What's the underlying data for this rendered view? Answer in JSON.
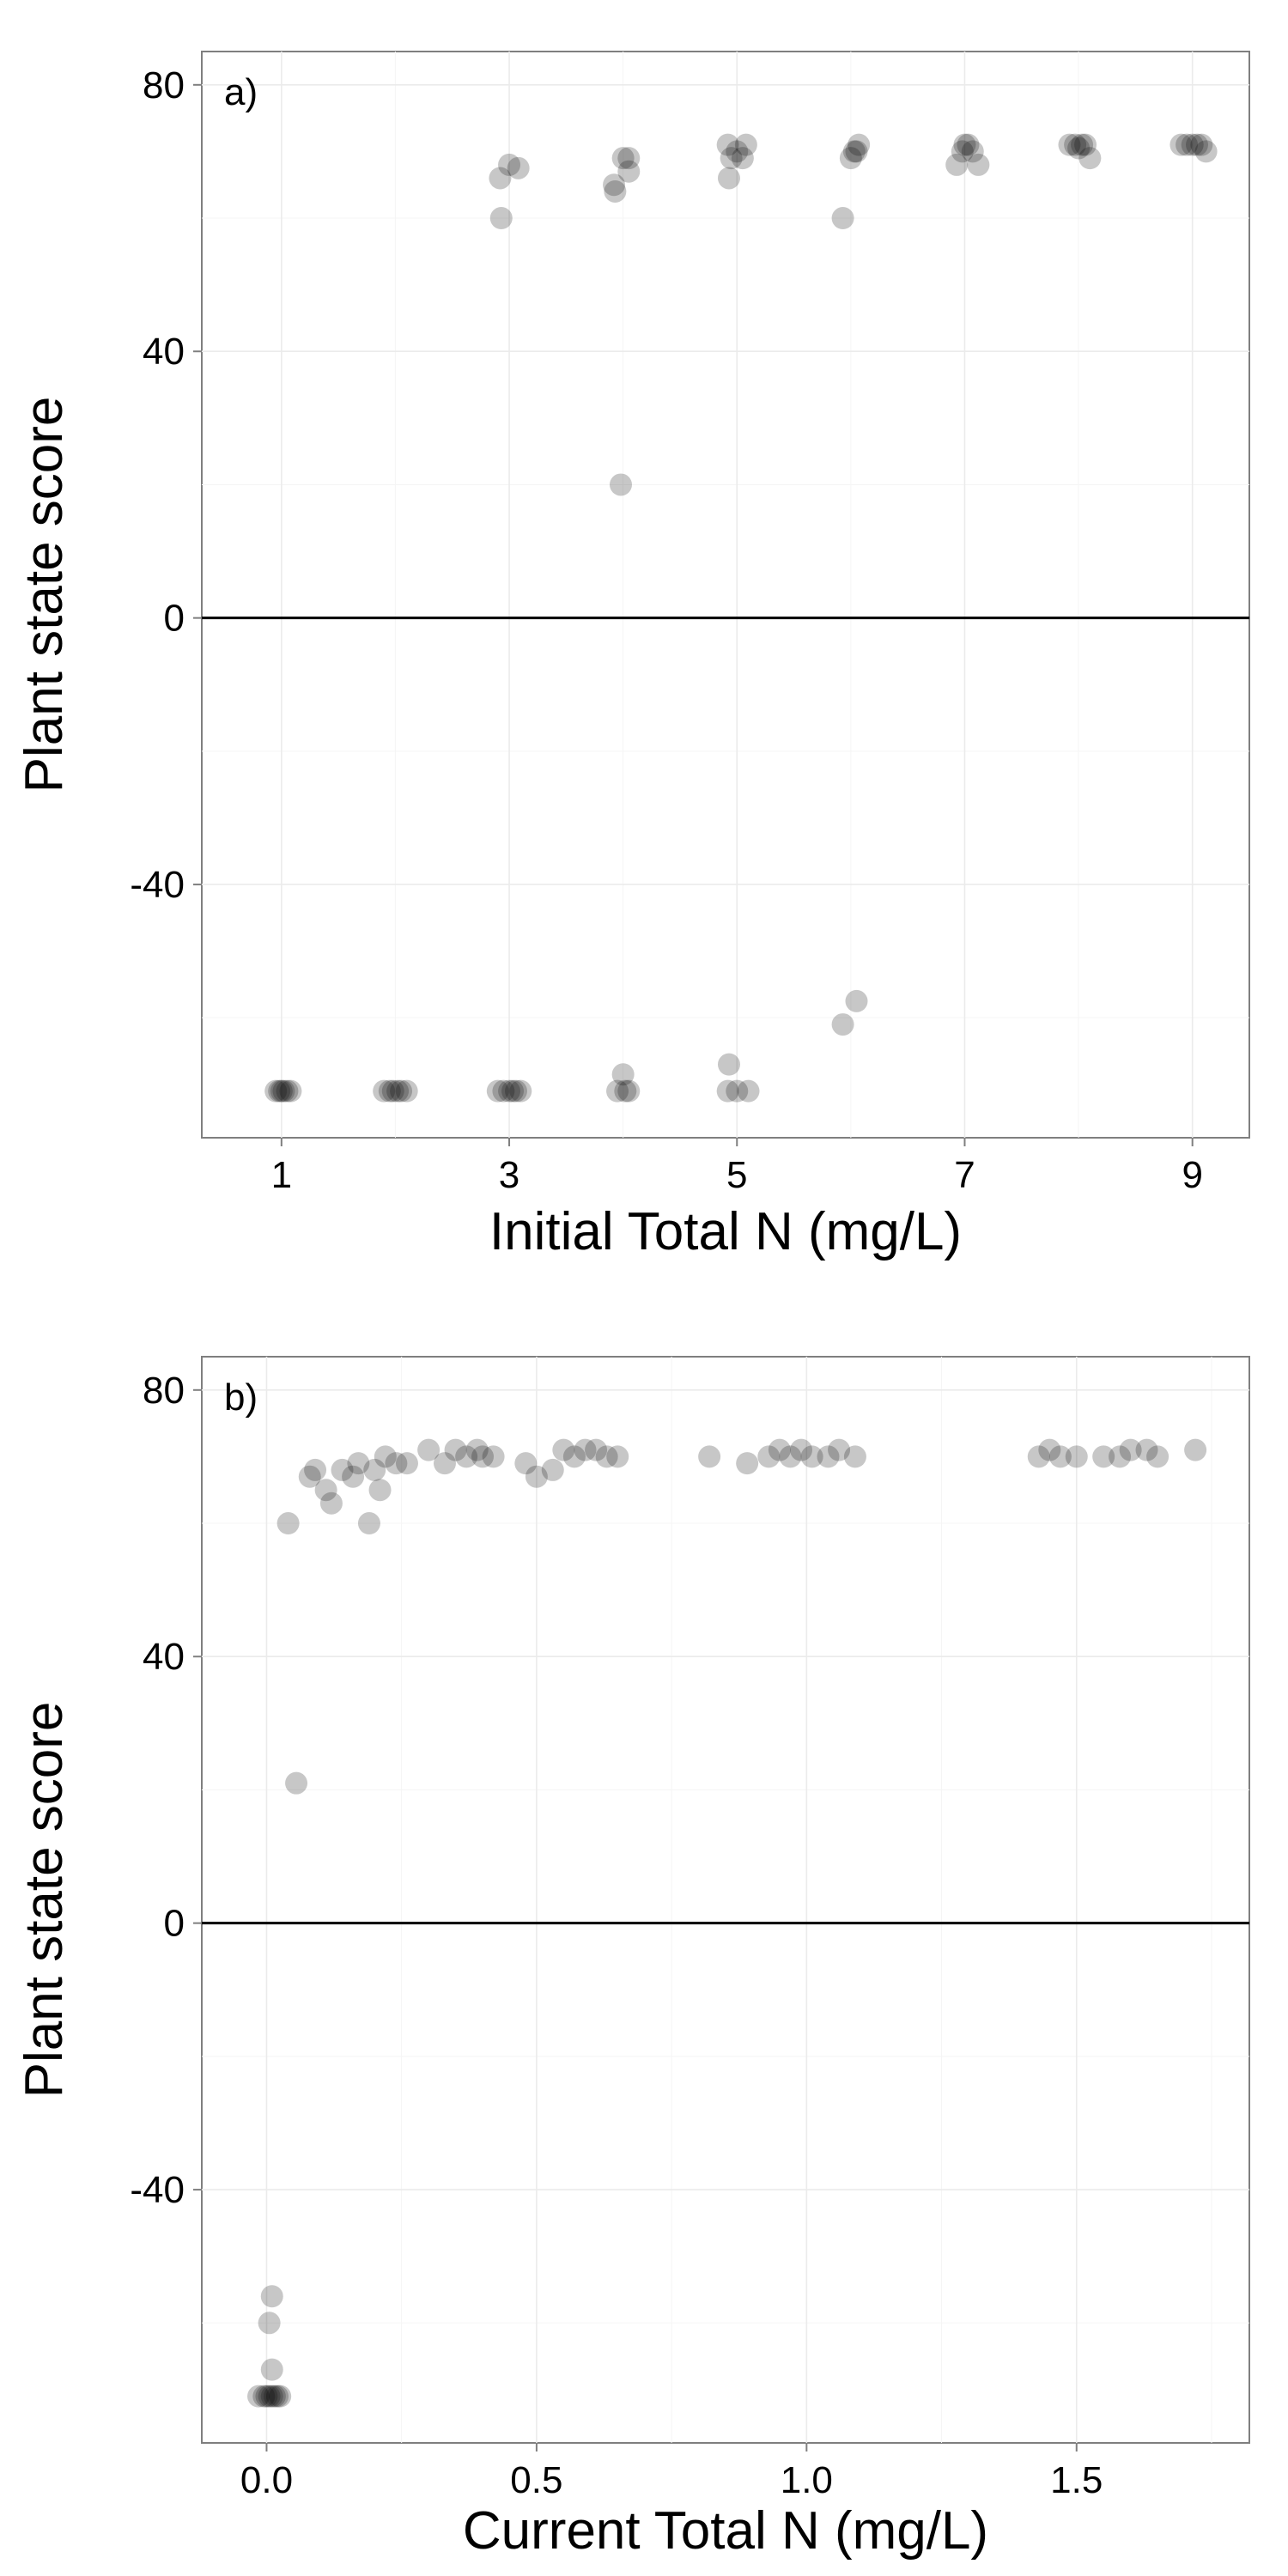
{
  "chart_data": [
    {
      "type": "scatter",
      "panel_label": "a)",
      "xlabel": "Initial Total N (mg/L)",
      "ylabel": "Plant state score",
      "xlim": [
        0.3,
        9.5
      ],
      "ylim": [
        -78,
        85
      ],
      "x_ticks": [
        1,
        3,
        5,
        7,
        9
      ],
      "x_tick_labels": [
        "1",
        "3",
        "5",
        "7",
        "9"
      ],
      "y_ticks": [
        -40,
        0,
        40,
        80
      ],
      "y_tick_labels": [
        "-40",
        "0",
        "40",
        "80"
      ],
      "reference_line_y": 0,
      "grid": true,
      "points": [
        {
          "x": 0.95,
          "y": -71
        },
        {
          "x": 0.98,
          "y": -71
        },
        {
          "x": 1.0,
          "y": -71
        },
        {
          "x": 1.02,
          "y": -71
        },
        {
          "x": 1.05,
          "y": -71
        },
        {
          "x": 1.08,
          "y": -71
        },
        {
          "x": 1.9,
          "y": -71
        },
        {
          "x": 1.95,
          "y": -71
        },
        {
          "x": 1.98,
          "y": -71
        },
        {
          "x": 2.02,
          "y": -71
        },
        {
          "x": 2.05,
          "y": -71
        },
        {
          "x": 2.1,
          "y": -71
        },
        {
          "x": 2.9,
          "y": -71
        },
        {
          "x": 2.95,
          "y": -71
        },
        {
          "x": 3.0,
          "y": -71
        },
        {
          "x": 3.03,
          "y": -71
        },
        {
          "x": 3.06,
          "y": -71
        },
        {
          "x": 3.1,
          "y": -71
        },
        {
          "x": 3.95,
          "y": -71
        },
        {
          "x": 4.05,
          "y": -71
        },
        {
          "x": 4.02,
          "y": -71
        },
        {
          "x": 4.0,
          "y": -68.5
        },
        {
          "x": 4.92,
          "y": -71
        },
        {
          "x": 5.0,
          "y": -71
        },
        {
          "x": 5.1,
          "y": -71
        },
        {
          "x": 4.93,
          "y": -67
        },
        {
          "x": 5.93,
          "y": -61
        },
        {
          "x": 6.05,
          "y": -57.5
        },
        {
          "x": 3.98,
          "y": 20
        },
        {
          "x": 2.93,
          "y": 60
        },
        {
          "x": 2.92,
          "y": 66
        },
        {
          "x": 3.0,
          "y": 68
        },
        {
          "x": 3.08,
          "y": 67.5
        },
        {
          "x": 3.93,
          "y": 64
        },
        {
          "x": 3.92,
          "y": 65
        },
        {
          "x": 4.05,
          "y": 67
        },
        {
          "x": 4.0,
          "y": 69
        },
        {
          "x": 4.05,
          "y": 69
        },
        {
          "x": 4.93,
          "y": 66
        },
        {
          "x": 4.95,
          "y": 69
        },
        {
          "x": 4.92,
          "y": 71
        },
        {
          "x": 5.0,
          "y": 70
        },
        {
          "x": 5.05,
          "y": 69
        },
        {
          "x": 5.08,
          "y": 71
        },
        {
          "x": 5.93,
          "y": 60
        },
        {
          "x": 6.0,
          "y": 69
        },
        {
          "x": 6.03,
          "y": 70
        },
        {
          "x": 6.05,
          "y": 70
        },
        {
          "x": 6.07,
          "y": 71
        },
        {
          "x": 6.93,
          "y": 68
        },
        {
          "x": 6.98,
          "y": 70
        },
        {
          "x": 7.0,
          "y": 71
        },
        {
          "x": 7.03,
          "y": 71
        },
        {
          "x": 7.07,
          "y": 70
        },
        {
          "x": 7.12,
          "y": 68
        },
        {
          "x": 7.92,
          "y": 71
        },
        {
          "x": 7.97,
          "y": 71
        },
        {
          "x": 8.0,
          "y": 70.5
        },
        {
          "x": 8.03,
          "y": 71
        },
        {
          "x": 8.06,
          "y": 71
        },
        {
          "x": 8.1,
          "y": 69
        },
        {
          "x": 8.9,
          "y": 71
        },
        {
          "x": 8.95,
          "y": 71
        },
        {
          "x": 9.0,
          "y": 71
        },
        {
          "x": 9.04,
          "y": 71
        },
        {
          "x": 9.08,
          "y": 71
        },
        {
          "x": 9.12,
          "y": 70
        }
      ]
    },
    {
      "type": "scatter",
      "panel_label": "b)",
      "xlabel": "Current Total N (mg/L)",
      "ylabel": "Plant state score",
      "xlim": [
        -0.12,
        1.82
      ],
      "ylim": [
        -78,
        85
      ],
      "x_ticks": [
        0.0,
        0.5,
        1.0,
        1.5
      ],
      "x_tick_labels": [
        "0.0",
        "0.5",
        "1.0",
        "1.5"
      ],
      "y_ticks": [
        -40,
        0,
        40,
        80
      ],
      "y_tick_labels": [
        "-40",
        "0",
        "40",
        "80"
      ],
      "reference_line_y": 0,
      "grid": true,
      "points": [
        {
          "x": -0.015,
          "y": -71
        },
        {
          "x": -0.005,
          "y": -71
        },
        {
          "x": 0.0,
          "y": -71
        },
        {
          "x": 0.005,
          "y": -71
        },
        {
          "x": 0.01,
          "y": -71
        },
        {
          "x": 0.015,
          "y": -71
        },
        {
          "x": 0.02,
          "y": -71
        },
        {
          "x": 0.025,
          "y": -71
        },
        {
          "x": 0.01,
          "y": -67
        },
        {
          "x": 0.005,
          "y": -60
        },
        {
          "x": 0.01,
          "y": -56
        },
        {
          "x": 0.055,
          "y": 21
        },
        {
          "x": 0.04,
          "y": 60
        },
        {
          "x": 0.19,
          "y": 60
        },
        {
          "x": 0.08,
          "y": 67
        },
        {
          "x": 0.09,
          "y": 68
        },
        {
          "x": 0.11,
          "y": 65
        },
        {
          "x": 0.12,
          "y": 63
        },
        {
          "x": 0.14,
          "y": 68
        },
        {
          "x": 0.16,
          "y": 67
        },
        {
          "x": 0.17,
          "y": 69
        },
        {
          "x": 0.2,
          "y": 68
        },
        {
          "x": 0.21,
          "y": 65
        },
        {
          "x": 0.22,
          "y": 70
        },
        {
          "x": 0.24,
          "y": 69
        },
        {
          "x": 0.26,
          "y": 69
        },
        {
          "x": 0.3,
          "y": 71
        },
        {
          "x": 0.33,
          "y": 69
        },
        {
          "x": 0.35,
          "y": 71
        },
        {
          "x": 0.37,
          "y": 70
        },
        {
          "x": 0.39,
          "y": 71
        },
        {
          "x": 0.4,
          "y": 70
        },
        {
          "x": 0.42,
          "y": 70
        },
        {
          "x": 0.48,
          "y": 69
        },
        {
          "x": 0.5,
          "y": 67
        },
        {
          "x": 0.53,
          "y": 68
        },
        {
          "x": 0.55,
          "y": 71
        },
        {
          "x": 0.57,
          "y": 70
        },
        {
          "x": 0.59,
          "y": 71
        },
        {
          "x": 0.61,
          "y": 71
        },
        {
          "x": 0.63,
          "y": 70
        },
        {
          "x": 0.65,
          "y": 70
        },
        {
          "x": 0.82,
          "y": 70
        },
        {
          "x": 0.89,
          "y": 69
        },
        {
          "x": 0.93,
          "y": 70
        },
        {
          "x": 0.95,
          "y": 71
        },
        {
          "x": 0.97,
          "y": 70
        },
        {
          "x": 0.99,
          "y": 71
        },
        {
          "x": 1.01,
          "y": 70
        },
        {
          "x": 1.04,
          "y": 70
        },
        {
          "x": 1.06,
          "y": 71
        },
        {
          "x": 1.09,
          "y": 70
        },
        {
          "x": 1.43,
          "y": 70
        },
        {
          "x": 1.45,
          "y": 71
        },
        {
          "x": 1.47,
          "y": 70
        },
        {
          "x": 1.5,
          "y": 70
        },
        {
          "x": 1.55,
          "y": 70
        },
        {
          "x": 1.58,
          "y": 70
        },
        {
          "x": 1.6,
          "y": 71
        },
        {
          "x": 1.63,
          "y": 71
        },
        {
          "x": 1.65,
          "y": 70
        },
        {
          "x": 1.72,
          "y": 71
        }
      ]
    }
  ]
}
